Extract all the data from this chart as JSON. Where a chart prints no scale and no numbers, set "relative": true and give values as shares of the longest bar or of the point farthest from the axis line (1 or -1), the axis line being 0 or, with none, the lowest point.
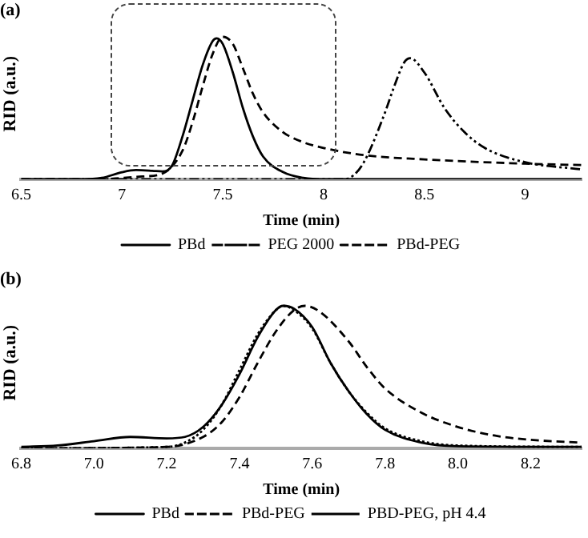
{
  "chart_data": [
    {
      "type": "line",
      "title": "(a)",
      "xlabel": "Time (min)",
      "ylabel": "RID (a.u.)",
      "relative": true,
      "xlim": [
        6.5,
        9.28
      ],
      "xticks": [
        6.5,
        7,
        7.5,
        8,
        8.5,
        9
      ],
      "grid": false,
      "legend": "bottom",
      "marker": "none",
      "series": [
        {
          "name": "PBd",
          "color": "#000000",
          "line_style": "solid",
          "x": [
            6.5,
            6.8,
            6.9,
            7.0,
            7.07,
            7.15,
            7.2,
            7.25,
            7.3,
            7.35,
            7.4,
            7.45,
            7.47,
            7.5,
            7.55,
            7.6,
            7.65,
            7.7,
            7.8,
            7.9,
            8.0,
            8.5,
            9.28
          ],
          "values": [
            0,
            0,
            0.01,
            0.05,
            0.065,
            0.06,
            0.055,
            0.1,
            0.3,
            0.55,
            0.8,
            0.97,
            0.99,
            0.95,
            0.75,
            0.5,
            0.3,
            0.16,
            0.05,
            0.01,
            0,
            0,
            0
          ]
        },
        {
          "name": "PEG 2000",
          "color": "#000000",
          "line_style": "dashdot",
          "x": [
            6.5,
            8.0,
            8.1,
            8.15,
            8.2,
            8.3,
            8.35,
            8.4,
            8.43,
            8.5,
            8.6,
            8.7,
            8.8,
            9.0,
            9.28
          ],
          "values": [
            0,
            0,
            0,
            0.03,
            0.12,
            0.45,
            0.65,
            0.82,
            0.85,
            0.75,
            0.5,
            0.33,
            0.22,
            0.12,
            0.07
          ]
        },
        {
          "name": "PBd-PEG",
          "color": "#000000",
          "line_style": "dashed",
          "x": [
            6.5,
            6.9,
            7.0,
            7.1,
            7.2,
            7.3,
            7.35,
            7.4,
            7.45,
            7.5,
            7.55,
            7.6,
            7.65,
            7.7,
            7.8,
            7.9,
            8.0,
            8.2,
            8.5,
            9.0,
            9.28
          ],
          "values": [
            0,
            0,
            0.01,
            0.02,
            0.04,
            0.2,
            0.4,
            0.65,
            0.88,
            1.0,
            0.95,
            0.78,
            0.6,
            0.47,
            0.33,
            0.26,
            0.22,
            0.17,
            0.14,
            0.11,
            0.1
          ]
        }
      ]
    },
    {
      "type": "line",
      "title": "(b)",
      "xlabel": "Time (min)",
      "ylabel": "RID (a.u.)",
      "relative": true,
      "xlim": [
        6.8,
        8.34
      ],
      "xticks": [
        {
          "value": 6.8,
          "label": "6.8"
        },
        {
          "value": 7.0,
          "label": "7.0"
        },
        {
          "value": 7.2,
          "label": "7.2"
        },
        {
          "value": 7.4,
          "label": "7.4"
        },
        {
          "value": 7.6,
          "label": "7.6"
        },
        {
          "value": 7.8,
          "label": "7.8"
        },
        {
          "value": 8.0,
          "label": "8.0"
        },
        {
          "value": 8.2,
          "label": "8.2"
        }
      ],
      "grid": false,
      "legend": "bottom",
      "marker": "none",
      "series": [
        {
          "name": "PBd",
          "color": "#000000",
          "line_style": "solid",
          "x": [
            6.8,
            6.9,
            7.0,
            7.1,
            7.2,
            7.25,
            7.3,
            7.35,
            7.4,
            7.45,
            7.5,
            7.52,
            7.55,
            7.6,
            7.65,
            7.7,
            7.75,
            7.8,
            7.9,
            8.0,
            8.34
          ],
          "values": [
            0.01,
            0.02,
            0.05,
            0.08,
            0.07,
            0.08,
            0.15,
            0.3,
            0.52,
            0.78,
            0.97,
            1.0,
            0.98,
            0.85,
            0.6,
            0.4,
            0.24,
            0.13,
            0.04,
            0.015,
            0.01
          ]
        },
        {
          "name": "PBd-PEG",
          "color": "#000000",
          "line_style": "dashed",
          "x": [
            6.8,
            7.2,
            7.3,
            7.35,
            7.4,
            7.45,
            7.5,
            7.55,
            7.58,
            7.62,
            7.7,
            7.75,
            7.8,
            7.9,
            8.0,
            8.1,
            8.2,
            8.34
          ],
          "values": [
            0,
            0.01,
            0.08,
            0.18,
            0.36,
            0.6,
            0.82,
            0.97,
            1.0,
            0.96,
            0.75,
            0.57,
            0.42,
            0.25,
            0.15,
            0.09,
            0.06,
            0.04
          ]
        },
        {
          "name": "PBD-PEG, pH 4.4",
          "color": "#000000",
          "line_style": "dotted",
          "x": [
            6.8,
            7.2,
            7.25,
            7.3,
            7.35,
            7.4,
            7.45,
            7.5,
            7.52,
            7.55,
            7.6,
            7.65,
            7.7,
            7.75,
            7.8,
            7.9,
            8.0,
            8.34
          ],
          "values": [
            0,
            0.01,
            0.04,
            0.13,
            0.3,
            0.55,
            0.8,
            0.97,
            1.0,
            0.97,
            0.84,
            0.6,
            0.4,
            0.25,
            0.14,
            0.05,
            0.02,
            0.01
          ]
        }
      ]
    }
  ]
}
